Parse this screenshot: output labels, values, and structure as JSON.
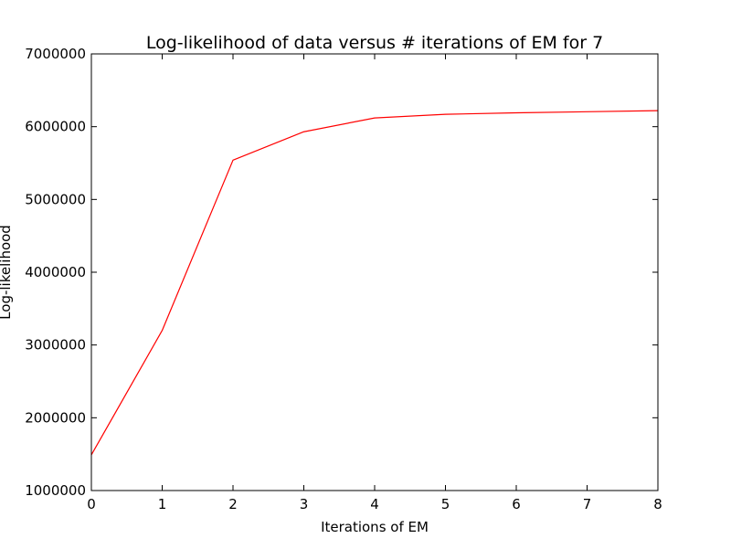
{
  "chart_data": {
    "type": "line",
    "title": "Log-likelihood of data versus # iterations of EM for 7",
    "xlabel": "Iterations of EM",
    "ylabel": "Log-likelihood",
    "xlim": [
      0,
      8
    ],
    "ylim": [
      1000000,
      7000000
    ],
    "xticks": [
      0,
      1,
      2,
      3,
      4,
      5,
      6,
      7,
      8
    ],
    "xtick_labels": [
      "0",
      "1",
      "2",
      "3",
      "4",
      "5",
      "6",
      "7",
      "8"
    ],
    "yticks": [
      1000000,
      2000000,
      3000000,
      4000000,
      5000000,
      6000000,
      7000000
    ],
    "ytick_labels": [
      "1000000",
      "2000000",
      "3000000",
      "4000000",
      "5000000",
      "6000000",
      "7000000"
    ],
    "grid": false,
    "legend": "none",
    "series": [
      {
        "color": "#ff0000",
        "x": [
          0,
          1,
          2,
          3,
          4,
          5,
          6,
          7,
          8
        ],
        "values": [
          1490000,
          3200000,
          5540000,
          5930000,
          6120000,
          6170000,
          6190000,
          6205000,
          6220000
        ]
      }
    ]
  }
}
